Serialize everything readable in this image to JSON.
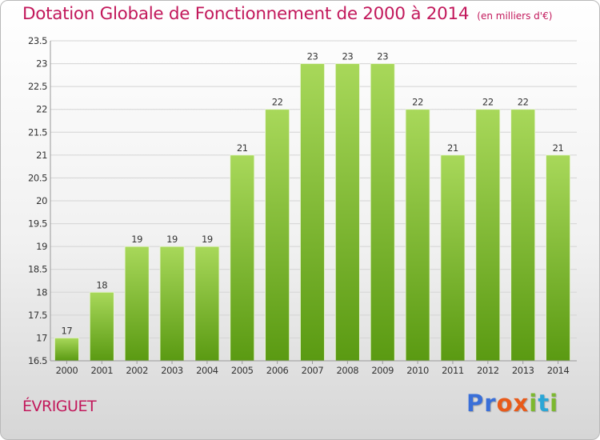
{
  "header": {
    "title": "Dotation Globale de Fonctionnement de 2000 à 2014",
    "subtitle": "(en milliers d'€)"
  },
  "footer": {
    "commune": "ÉVRIGUET",
    "logo_letters": [
      {
        "ch": "P",
        "color": "#3a6fd8"
      },
      {
        "ch": "r",
        "color": "#3a6fd8"
      },
      {
        "ch": "o",
        "color": "#e85a1a"
      },
      {
        "ch": "x",
        "color": "#e85a1a"
      },
      {
        "ch": "i",
        "color": "#7cb82f"
      },
      {
        "ch": "t",
        "color": "#2aa6d6"
      },
      {
        "ch": "i",
        "color": "#7cb82f"
      }
    ]
  },
  "chart_data": {
    "type": "bar",
    "categories": [
      "2000",
      "2001",
      "2002",
      "2003",
      "2004",
      "2005",
      "2006",
      "2007",
      "2008",
      "2009",
      "2010",
      "2011",
      "2012",
      "2013",
      "2014"
    ],
    "values": [
      17,
      18,
      19,
      19,
      19,
      21,
      22,
      23,
      23,
      23,
      22,
      21,
      22,
      22,
      21
    ],
    "data_labels": [
      "17",
      "18",
      "19",
      "19",
      "19",
      "21",
      "22",
      "23",
      "23",
      "23",
      "22",
      "21",
      "22",
      "22",
      "21"
    ],
    "ylim": [
      16.5,
      23.5
    ],
    "yticks": [
      16.5,
      17,
      17.5,
      18,
      18.5,
      19,
      19.5,
      20,
      20.5,
      21,
      21.5,
      22,
      22.5,
      23,
      23.5
    ],
    "ytick_labels": [
      "16.5",
      "17",
      "17.5",
      "18",
      "18.5",
      "19",
      "19.5",
      "20",
      "20.5",
      "21",
      "21.5",
      "22",
      "22.5",
      "23",
      "23.5"
    ],
    "grid": true,
    "colors": {
      "bar_top": "#a8d85a",
      "bar_bottom": "#5a9a12",
      "grid": "#d4d4d4",
      "axis": "#999999",
      "text": "#333333"
    }
  }
}
